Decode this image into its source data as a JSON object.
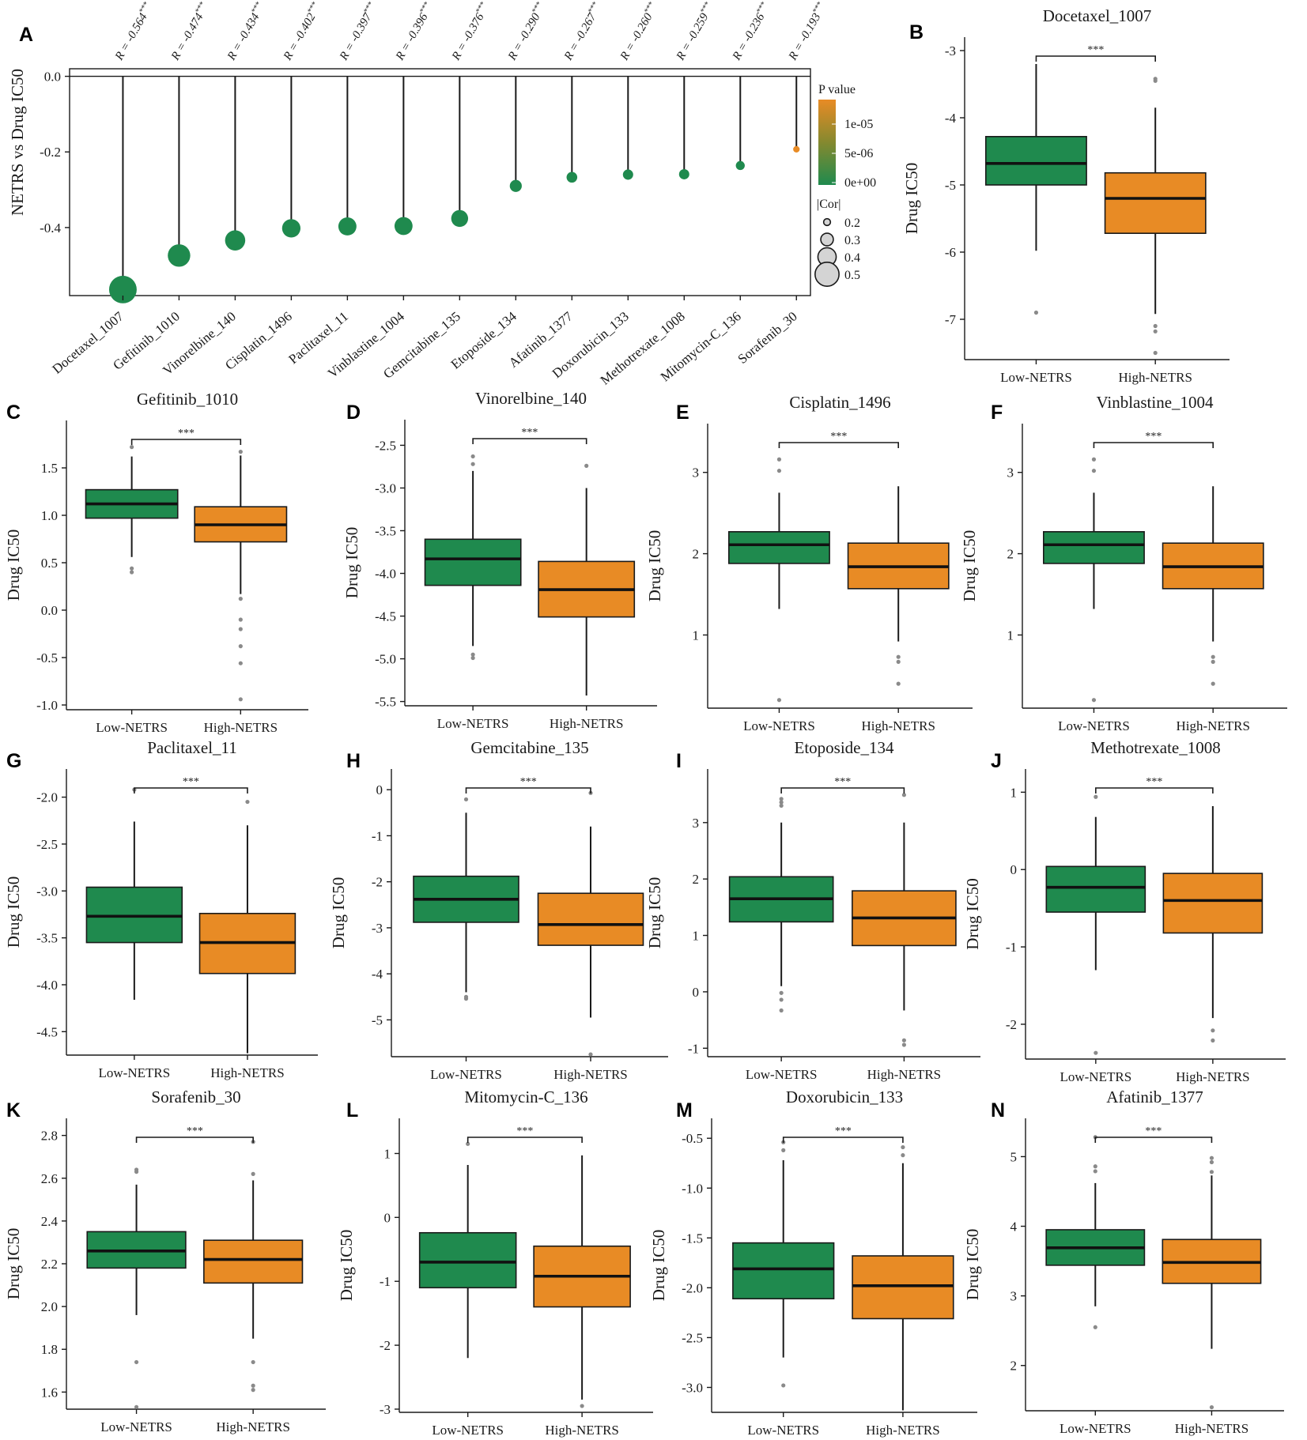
{
  "colors": {
    "low": "#1f8a4e",
    "high": "#e88b25",
    "outlier": "#8a8a8a",
    "legend_size_fill": "#d4d4d4"
  },
  "chart_data": [
    {
      "panel": "A",
      "type": "scatter",
      "subtype": "lollipop",
      "ylabel": "NETRS vs Drug IC50",
      "ylim": [
        -0.58,
        0.02
      ],
      "yticks": [
        "0.0",
        "-0.2",
        "-0.4"
      ],
      "ytick_values": [
        0.0,
        -0.2,
        -0.4
      ],
      "drugs": [
        "Docetaxel_1007",
        "Gefitinib_1010",
        "Vinorelbine_140",
        "Cisplatin_1496",
        "Paclitaxel_11",
        "Vinblastine_1004",
        "Gemcitabine_135",
        "Etoposide_134",
        "Afatinib_1377",
        "Doxorubicin_133",
        "Methotrexate_1008",
        "Mitomycin-C_136",
        "Sorafenib_30"
      ],
      "values": [
        -0.564,
        -0.474,
        -0.434,
        -0.402,
        -0.397,
        -0.396,
        -0.376,
        -0.29,
        -0.267,
        -0.26,
        -0.259,
        -0.236,
        -0.193
      ],
      "r_labels": [
        "R = -0.564",
        "R = -0.474",
        "R = -0.434",
        "R = -0.402",
        "R = -0.397",
        "R = -0.396",
        "R = -0.376",
        "R = -0.290",
        "R = -0.267",
        "R = -0.260",
        "R = -0.259",
        "R = -0.236",
        "R = -0.193"
      ],
      "significance": "***",
      "p_values": [
        0,
        0,
        0,
        0,
        0,
        0,
        0,
        0,
        0,
        0,
        0,
        0,
        1.5e-05
      ],
      "legend": {
        "color_title": "P value",
        "color_ticks": [
          "1e-05",
          "5e-06",
          "0e+00"
        ],
        "size_title": "|Cor|",
        "size_ticks": [
          "0.2",
          "0.3",
          "0.4",
          "0.5"
        ],
        "size_values": [
          0.2,
          0.3,
          0.4,
          0.5
        ]
      }
    },
    {
      "panel": "B",
      "type": "box",
      "title": "Docetaxel_1007",
      "ylabel": "Drug IC50",
      "categories": [
        "Low-NETRS",
        "High-NETRS"
      ],
      "significance": "***",
      "ylim": [
        -7.6,
        -2.8
      ],
      "yticks": [
        -3,
        -4,
        -5,
        -6,
        -7
      ],
      "ytick_labels": [
        "-3",
        "-4",
        "-5",
        "-6",
        "-7"
      ],
      "series": [
        {
          "name": "Low-NETRS",
          "q1": -5.0,
          "median": -4.68,
          "q3": -4.28,
          "whisker_low": -5.98,
          "whisker_high": -3.2,
          "outliers": [
            -6.9
          ]
        },
        {
          "name": "High-NETRS",
          "q1": -5.72,
          "median": -5.2,
          "q3": -4.82,
          "whisker_low": -6.92,
          "whisker_high": -3.85,
          "outliers": [
            -3.42,
            -3.45,
            -7.1,
            -7.18,
            -7.5
          ]
        }
      ]
    },
    {
      "panel": "C",
      "type": "box",
      "title": "Gefitinib_1010",
      "ylabel": "Drug IC50",
      "categories": [
        "Low-NETRS",
        "High-NETRS"
      ],
      "significance": "***",
      "ylim": [
        -1.05,
        2.0
      ],
      "yticks": [
        1.5,
        1.0,
        0.5,
        0.0,
        -0.5,
        -1.0
      ],
      "ytick_labels": [
        "1.5",
        "1.0",
        "0.5",
        "0.0",
        "-0.5",
        "-1.0"
      ],
      "series": [
        {
          "name": "Low-NETRS",
          "q1": 0.97,
          "median": 1.12,
          "q3": 1.27,
          "whisker_low": 0.56,
          "whisker_high": 1.62,
          "outliers": [
            1.72,
            0.4,
            0.44
          ]
        },
        {
          "name": "High-NETRS",
          "q1": 0.72,
          "median": 0.9,
          "q3": 1.09,
          "whisker_low": 0.17,
          "whisker_high": 1.63,
          "outliers": [
            1.67,
            0.12,
            -0.1,
            -0.2,
            -0.38,
            -0.56,
            -0.94
          ]
        }
      ]
    },
    {
      "panel": "D",
      "type": "box",
      "title": "Vinorelbine_140",
      "ylabel": "Drug IC50",
      "categories": [
        "Low-NETRS",
        "High-NETRS"
      ],
      "significance": "***",
      "ylim": [
        -5.55,
        -2.2
      ],
      "yticks": [
        -2.5,
        -3.0,
        -3.5,
        -4.0,
        -4.5,
        -5.0,
        -5.5
      ],
      "ytick_labels": [
        "-2.5",
        "-3.0",
        "-3.5",
        "-4.0",
        "-4.5",
        "-5.0",
        "-5.5"
      ],
      "series": [
        {
          "name": "Low-NETRS",
          "q1": -4.14,
          "median": -3.83,
          "q3": -3.6,
          "whisker_low": -4.85,
          "whisker_high": -2.8,
          "outliers": [
            -2.63,
            -2.72,
            -4.95,
            -4.99
          ]
        },
        {
          "name": "High-NETRS",
          "q1": -4.51,
          "median": -4.19,
          "q3": -3.86,
          "whisker_low": -5.43,
          "whisker_high": -3.0,
          "outliers": [
            -2.74
          ]
        }
      ]
    },
    {
      "panel": "E",
      "type": "box",
      "title": "Cisplatin_1496",
      "ylabel": "Drug IC50",
      "categories": [
        "Low-NETRS",
        "High-NETRS"
      ],
      "significance": "***",
      "ylim": [
        0.1,
        3.6
      ],
      "yticks": [
        3,
        2,
        1
      ],
      "ytick_labels": [
        "3",
        "2",
        "1"
      ],
      "series": [
        {
          "name": "Low-NETRS",
          "q1": 1.88,
          "median": 2.11,
          "q3": 2.27,
          "whisker_low": 1.32,
          "whisker_high": 2.75,
          "outliers": [
            3.16,
            3.02,
            0.2
          ]
        },
        {
          "name": "High-NETRS",
          "q1": 1.57,
          "median": 1.84,
          "q3": 2.13,
          "whisker_low": 0.92,
          "whisker_high": 2.83,
          "outliers": [
            0.73,
            0.67,
            0.4
          ]
        }
      ]
    },
    {
      "panel": "F",
      "type": "box",
      "title": "Vinblastine_1004",
      "ylabel": "Drug IC50",
      "categories": [
        "Low-NETRS",
        "High-NETRS"
      ],
      "significance": "***",
      "ylim": [
        0.1,
        3.6
      ],
      "yticks": [
        3,
        2,
        1
      ],
      "ytick_labels": [
        "3",
        "2",
        "1"
      ],
      "series": [
        {
          "name": "Low-NETRS",
          "q1": 1.88,
          "median": 2.11,
          "q3": 2.27,
          "whisker_low": 1.32,
          "whisker_high": 2.75,
          "outliers": [
            3.16,
            3.02,
            0.2
          ]
        },
        {
          "name": "High-NETRS",
          "q1": 1.57,
          "median": 1.84,
          "q3": 2.13,
          "whisker_low": 0.92,
          "whisker_high": 2.83,
          "outliers": [
            0.73,
            0.67,
            0.4
          ]
        }
      ]
    },
    {
      "panel": "G",
      "type": "box",
      "title": "Paclitaxel_11",
      "ylabel": "Drug IC50",
      "categories": [
        "Low-NETRS",
        "High-NETRS"
      ],
      "significance": "***",
      "ylim": [
        -4.75,
        -1.7
      ],
      "yticks": [
        -2.0,
        -2.5,
        -3.0,
        -3.5,
        -4.0,
        -4.5
      ],
      "ytick_labels": [
        "-2.0",
        "-2.5",
        "-3.0",
        "-3.5",
        "-4.0",
        "-4.5"
      ],
      "series": [
        {
          "name": "Low-NETRS",
          "q1": -3.55,
          "median": -3.27,
          "q3": -2.96,
          "whisker_low": -4.16,
          "whisker_high": -2.26,
          "outliers": [
            -1.92
          ]
        },
        {
          "name": "High-NETRS",
          "q1": -3.88,
          "median": -3.55,
          "q3": -3.24,
          "whisker_low": -4.73,
          "whisker_high": -2.3,
          "outliers": [
            -2.05
          ]
        }
      ]
    },
    {
      "panel": "H",
      "type": "box",
      "title": "Gemcitabine_135",
      "ylabel": "Drug IC50",
      "categories": [
        "Low-NETRS",
        "High-NETRS"
      ],
      "significance": "***",
      "ylim": [
        -5.8,
        0.45
      ],
      "yticks": [
        0,
        -1,
        -2,
        -3,
        -4,
        -5
      ],
      "ytick_labels": [
        "0",
        "-1",
        "-2",
        "-3",
        "-4",
        "-5"
      ],
      "series": [
        {
          "name": "Low-NETRS",
          "q1": -2.88,
          "median": -2.38,
          "q3": -1.88,
          "whisker_low": -4.4,
          "whisker_high": -0.5,
          "outliers": [
            -0.21,
            -4.5,
            -4.54
          ]
        },
        {
          "name": "High-NETRS",
          "q1": -3.38,
          "median": -2.93,
          "q3": -2.25,
          "whisker_low": -4.95,
          "whisker_high": -0.8,
          "outliers": [
            -0.07,
            -5.75
          ]
        }
      ]
    },
    {
      "panel": "I",
      "type": "box",
      "title": "Etoposide_134",
      "ylabel": "Drug IC50",
      "categories": [
        "Low-NETRS",
        "High-NETRS"
      ],
      "significance": "***",
      "ylim": [
        -1.15,
        3.95
      ],
      "yticks": [
        3,
        2,
        1,
        0,
        -1
      ],
      "ytick_labels": [
        "3",
        "2",
        "1",
        "0",
        "-1"
      ],
      "series": [
        {
          "name": "Low-NETRS",
          "q1": 1.24,
          "median": 1.65,
          "q3": 2.04,
          "whisker_low": 0.1,
          "whisker_high": 3.0,
          "outliers": [
            3.3,
            3.36,
            3.42,
            -0.02,
            -0.14,
            -0.33
          ]
        },
        {
          "name": "High-NETRS",
          "q1": 0.82,
          "median": 1.31,
          "q3": 1.79,
          "whisker_low": -0.33,
          "whisker_high": 3.0,
          "outliers": [
            3.49,
            -0.86,
            -0.94
          ]
        }
      ]
    },
    {
      "panel": "J",
      "type": "box",
      "title": "Methotrexate_1008",
      "ylabel": "Drug IC50",
      "categories": [
        "Low-NETRS",
        "High-NETRS"
      ],
      "significance": "***",
      "ylim": [
        -2.45,
        1.3
      ],
      "yticks": [
        1,
        0,
        -1,
        -2
      ],
      "ytick_labels": [
        "1",
        "0",
        "-1",
        "-2"
      ],
      "series": [
        {
          "name": "Low-NETRS",
          "q1": -0.55,
          "median": -0.23,
          "q3": 0.04,
          "whisker_low": -1.3,
          "whisker_high": 0.68,
          "outliers": [
            0.94,
            -2.37
          ]
        },
        {
          "name": "High-NETRS",
          "q1": -0.82,
          "median": -0.4,
          "q3": -0.05,
          "whisker_low": -1.92,
          "whisker_high": 0.82,
          "outliers": [
            -2.08,
            -2.21
          ]
        }
      ]
    },
    {
      "panel": "K",
      "type": "box",
      "title": "Sorafenib_30",
      "ylabel": "Drug IC50",
      "categories": [
        "Low-NETRS",
        "High-NETRS"
      ],
      "significance": "***",
      "ylim": [
        1.52,
        2.88
      ],
      "yticks": [
        2.8,
        2.6,
        2.4,
        2.2,
        2.0,
        1.8,
        1.6
      ],
      "ytick_labels": [
        "2.8",
        "2.6",
        "2.4",
        "2.2",
        "2.0",
        "1.8",
        "1.6"
      ],
      "series": [
        {
          "name": "Low-NETRS",
          "q1": 2.18,
          "median": 2.26,
          "q3": 2.35,
          "whisker_low": 1.96,
          "whisker_high": 2.57,
          "outliers": [
            2.63,
            2.64,
            1.74,
            1.53
          ]
        },
        {
          "name": "High-NETRS",
          "q1": 2.11,
          "median": 2.22,
          "q3": 2.31,
          "whisker_low": 1.85,
          "whisker_high": 2.59,
          "outliers": [
            2.77,
            2.62,
            1.74,
            1.63,
            1.61
          ]
        }
      ]
    },
    {
      "panel": "L",
      "type": "box",
      "title": "Mitomycin-C_136",
      "ylabel": "Drug IC50",
      "categories": [
        "Low-NETRS",
        "High-NETRS"
      ],
      "significance": "***",
      "ylim": [
        -3.05,
        1.55
      ],
      "yticks": [
        1,
        0,
        -1,
        -2,
        -3
      ],
      "ytick_labels": [
        "1",
        "0",
        "-1",
        "-2",
        "-3"
      ],
      "series": [
        {
          "name": "Low-NETRS",
          "q1": -1.1,
          "median": -0.7,
          "q3": -0.24,
          "whisker_low": -2.2,
          "whisker_high": 0.82,
          "outliers": [
            1.15
          ]
        },
        {
          "name": "High-NETRS",
          "q1": -1.4,
          "median": -0.92,
          "q3": -0.45,
          "whisker_low": -2.85,
          "whisker_high": 0.97,
          "outliers": [
            -2.95
          ]
        }
      ]
    },
    {
      "panel": "M",
      "type": "box",
      "title": "Doxorubicin_133",
      "ylabel": "Drug IC50",
      "categories": [
        "Low-NETRS",
        "High-NETRS"
      ],
      "significance": "***",
      "ylim": [
        -3.25,
        -0.3
      ],
      "yticks": [
        -0.5,
        -1.0,
        -1.5,
        -2.0,
        -2.5,
        -3.0
      ],
      "ytick_labels": [
        "-0.5",
        "-1.0",
        "-1.5",
        "-2.0",
        "-2.5",
        "-3.0"
      ],
      "series": [
        {
          "name": "Low-NETRS",
          "q1": -2.11,
          "median": -1.81,
          "q3": -1.55,
          "whisker_low": -2.7,
          "whisker_high": -0.72,
          "outliers": [
            -0.54,
            -0.62,
            -2.98
          ]
        },
        {
          "name": "High-NETRS",
          "q1": -2.31,
          "median": -1.98,
          "q3": -1.68,
          "whisker_low": -3.23,
          "whisker_high": -0.75,
          "outliers": [
            -0.59,
            -0.67
          ]
        }
      ]
    },
    {
      "panel": "N",
      "type": "box",
      "title": "Afatinib_1377",
      "ylabel": "Drug IC50",
      "categories": [
        "Low-NETRS",
        "High-NETRS"
      ],
      "significance": "***",
      "ylim": [
        1.35,
        5.55
      ],
      "yticks": [
        5,
        4,
        3,
        2
      ],
      "ytick_labels": [
        "5",
        "4",
        "3",
        "2"
      ],
      "series": [
        {
          "name": "Low-NETRS",
          "q1": 3.44,
          "median": 3.69,
          "q3": 3.95,
          "whisker_low": 2.85,
          "whisker_high": 4.62,
          "outliers": [
            5.28,
            4.86,
            4.79,
            2.55
          ]
        },
        {
          "name": "High-NETRS",
          "q1": 3.18,
          "median": 3.48,
          "q3": 3.81,
          "whisker_low": 2.24,
          "whisker_high": 4.73,
          "outliers": [
            4.98,
            4.92,
            4.78,
            1.4
          ]
        }
      ]
    }
  ]
}
